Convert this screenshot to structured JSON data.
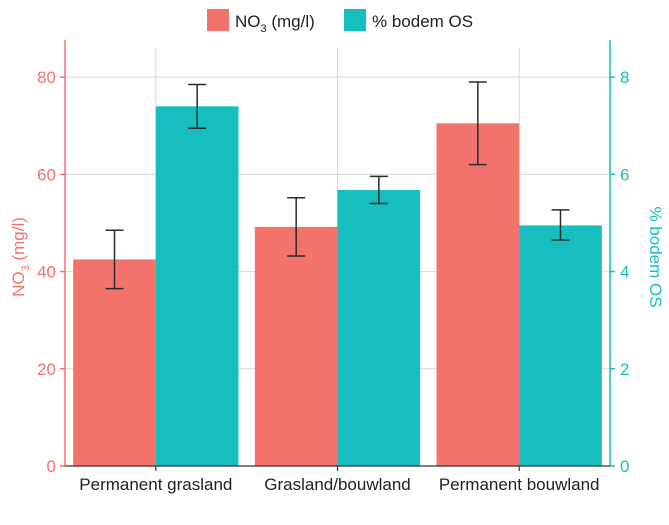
{
  "chart_data": {
    "type": "bar",
    "categories": [
      "Permanent grasland",
      "Grasland/bouwland",
      "Permanent bouwland"
    ],
    "series": [
      {
        "name": "NO3 (mg/l)",
        "legend_main": "NO",
        "legend_sub": "3",
        "legend_tail": " (mg/l)",
        "axis": "left",
        "color": "#f2736b",
        "values": [
          42.5,
          49.2,
          70.5
        ],
        "error_low": [
          36.5,
          43.2,
          62.0
        ],
        "error_high": [
          48.5,
          55.2,
          79.0
        ]
      },
      {
        "name": "% bodem OS",
        "legend_main": "% bodem OS",
        "axis": "right",
        "color": "#17bec0",
        "values": [
          7.4,
          5.68,
          4.95
        ],
        "error_low": [
          6.95,
          5.4,
          4.65
        ],
        "error_high": [
          7.85,
          5.96,
          5.27
        ]
      }
    ],
    "y_left": {
      "label_main": "NO",
      "label_sub": "3",
      "label_tail": " (mg/l)",
      "ticks": [
        0,
        20,
        40,
        60,
        80
      ],
      "tick_labels": [
        "0",
        "20",
        "40",
        "60",
        "80"
      ],
      "range": [
        0,
        86
      ],
      "color": "#f2736b"
    },
    "y_right": {
      "label": "% bodem OS",
      "ticks": [
        0,
        2,
        4,
        6,
        8
      ],
      "tick_labels": [
        "0",
        "2",
        "4",
        "6",
        "8"
      ],
      "range": [
        0,
        8.6
      ],
      "color": "#17bec0"
    },
    "grid": true,
    "legend_position": "top"
  }
}
